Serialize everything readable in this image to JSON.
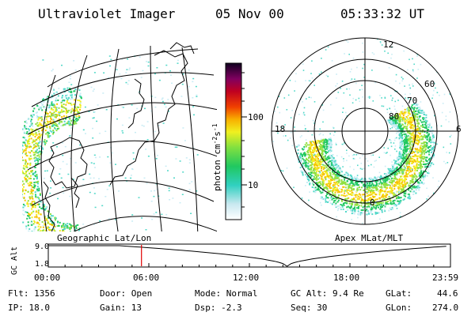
{
  "header": {
    "instrument": "Ultraviolet Imager",
    "date": "05 Nov 00",
    "time": "05:33:32 UT"
  },
  "colorbar": {
    "unit_label": "photon cm",
    "unit_exp1": "-2",
    "unit_s": "s",
    "unit_exp2": "-1",
    "tick_labels": [
      "100",
      "10"
    ]
  },
  "polar_plot": {
    "mlt_labels": [
      "12",
      "18",
      "6",
      "0"
    ],
    "lat_labels": [
      "60",
      "70",
      "80"
    ]
  },
  "projection_labels": {
    "left": "Geographic Lat/Lon",
    "right": "Apex MLat/MLT"
  },
  "timeline": {
    "axis_title": "GC Alt",
    "y_labels": [
      "9.0",
      "1.8"
    ],
    "time_labels": [
      "00:00",
      "06:00",
      "12:00",
      "18:00",
      "23:59"
    ],
    "current_time_hours": 5.559
  },
  "info": {
    "flt": "Flt: 1356",
    "ip": "IP: 18.0",
    "door": "Door: Open",
    "gain": "Gain: 13",
    "mode": "Mode: Normal",
    "dsp": "Dsp:    -2.3",
    "gcalt": "GC Alt: 9.4 Re",
    "seq": "Seq: 30",
    "glat_label": "GLat:",
    "glat_value": "44.6",
    "glon_label": "GLon:",
    "glon_value": "274.0"
  }
}
